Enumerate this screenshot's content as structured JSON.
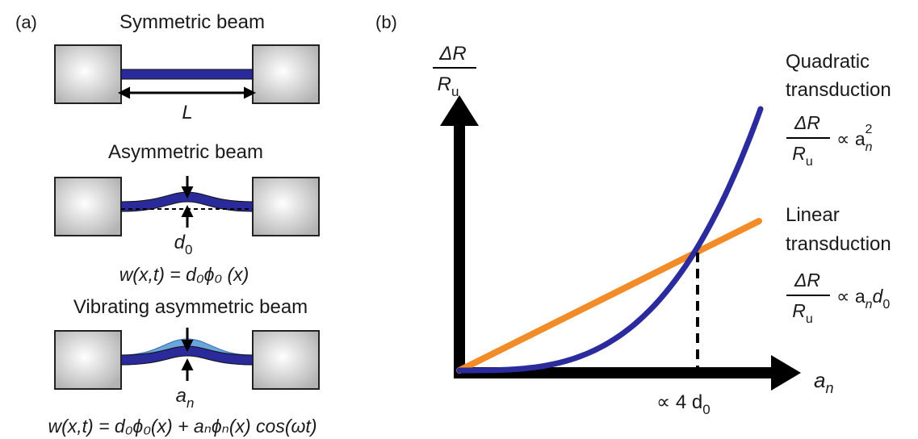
{
  "panel_a": {
    "label": "(a)",
    "symmetric": {
      "title": "Symmetric beam",
      "length_symbol": "L"
    },
    "asymmetric": {
      "title": "Asymmetric beam",
      "offset_symbol": "d",
      "offset_subscript": "0",
      "equation": "w(x,t) = d₀ϕ₀ (x)"
    },
    "vibrating": {
      "title": "Vibrating asymmetric beam",
      "amplitude_symbol": "a",
      "amplitude_subscript": "n",
      "equation": "w(x,t) = d₀ϕ₀(x) + aₙϕₙ(x) cos(ωt)"
    },
    "colors": {
      "beam": "#2a2a9a",
      "beam_light": "#5b9bd5",
      "clamp": "#c4c4c4"
    }
  },
  "panel_b": {
    "label": "(b)",
    "y_label_numerator": "ΔR",
    "y_label_denominator": "R",
    "y_label_denominator_sub": "u",
    "x_label": "a",
    "x_label_sub": "n",
    "x_marker": "∝ 4 d",
    "x_marker_sub": "0",
    "quadratic": {
      "title_line1": "Quadratic",
      "title_line2": "transduction",
      "frac_num": "ΔR",
      "frac_den": "R",
      "frac_den_sub": "u",
      "prop": "∝ a",
      "prop_sub": "n",
      "prop_sup": "2"
    },
    "linear": {
      "title_line1": "Linear",
      "title_line2": "transduction",
      "frac_num": "ΔR",
      "frac_den": "R",
      "frac_den_sub": "u",
      "prop": "∝ a",
      "prop_sub": "n",
      "prop_tail": "d",
      "prop_tail_sub": "0"
    },
    "colors": {
      "quadratic": "#2b2b9e",
      "linear": "#f28c28",
      "axes": "#000000"
    }
  }
}
